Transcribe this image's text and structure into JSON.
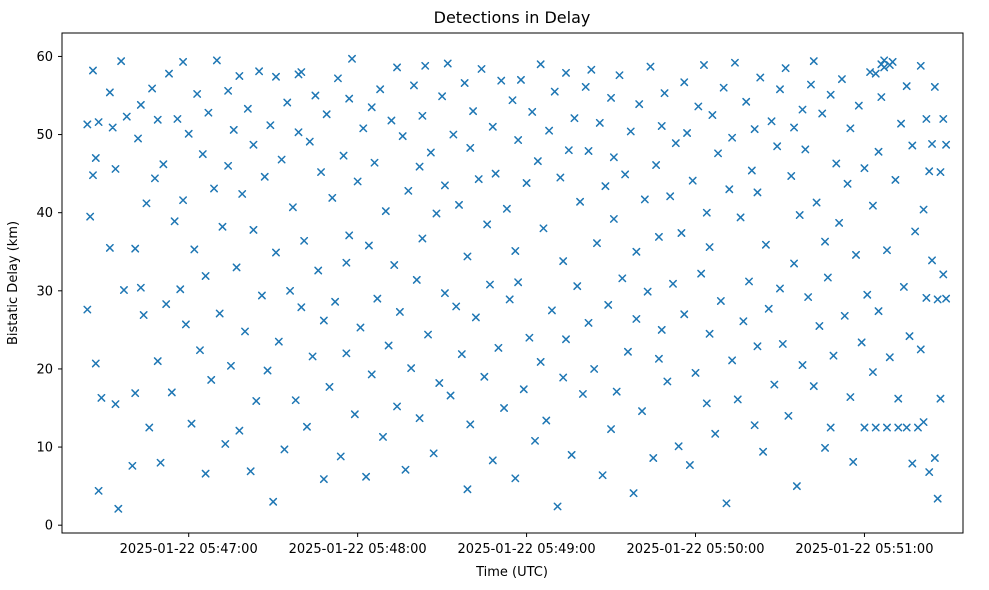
{
  "figure": {
    "title": "Detections in Delay",
    "xlabel": "Time (UTC)",
    "ylabel": "Bistatic Delay (km)"
  },
  "chart_data": {
    "type": "scatter",
    "title": "Detections in Delay",
    "xlabel": "Time (UTC)",
    "ylabel": "Bistatic Delay (km)",
    "marker": "x",
    "marker_color": "#1f77b4",
    "marker_size": 6,
    "grid": false,
    "legend": "none",
    "x_unit": "seconds after 2025-01-22 05:46:00 UTC",
    "xlim": [
      15,
      335
    ],
    "ylim": [
      -1,
      63
    ],
    "y_ticks": [
      0,
      10,
      20,
      30,
      40,
      50,
      60
    ],
    "x_ticks": [
      {
        "value": 60,
        "label": "2025-01-22 05:47:00"
      },
      {
        "value": 120,
        "label": "2025-01-22 05:48:00"
      },
      {
        "value": 180,
        "label": "2025-01-22 05:49:00"
      },
      {
        "value": 240,
        "label": "2025-01-22 05:50:00"
      },
      {
        "value": 300,
        "label": "2025-01-22 05:51:00"
      }
    ],
    "points": [
      [
        24,
        51.3
      ],
      [
        24,
        27.6
      ],
      [
        25,
        39.5
      ],
      [
        26,
        58.2
      ],
      [
        26,
        44.8
      ],
      [
        27,
        20.7
      ],
      [
        27,
        47.0
      ],
      [
        28,
        4.4
      ],
      [
        28,
        51.6
      ],
      [
        29,
        16.3
      ],
      [
        32,
        55.4
      ],
      [
        32,
        35.5
      ],
      [
        33,
        50.9
      ],
      [
        34,
        15.5
      ],
      [
        34,
        45.6
      ],
      [
        35,
        2.1
      ],
      [
        36,
        59.4
      ],
      [
        37,
        30.1
      ],
      [
        38,
        52.3
      ],
      [
        40,
        7.6
      ],
      [
        41,
        35.4
      ],
      [
        41,
        16.9
      ],
      [
        42,
        49.5
      ],
      [
        43,
        30.4
      ],
      [
        43,
        53.8
      ],
      [
        44,
        26.9
      ],
      [
        45,
        41.2
      ],
      [
        46,
        12.5
      ],
      [
        47,
        55.9
      ],
      [
        48,
        44.4
      ],
      [
        49,
        21.0
      ],
      [
        49,
        51.9
      ],
      [
        50,
        8.0
      ],
      [
        51,
        46.2
      ],
      [
        52,
        28.3
      ],
      [
        53,
        57.8
      ],
      [
        54,
        17.0
      ],
      [
        55,
        38.9
      ],
      [
        56,
        52.0
      ],
      [
        57,
        30.2
      ],
      [
        58,
        59.3
      ],
      [
        58,
        41.6
      ],
      [
        59,
        25.7
      ],
      [
        60,
        50.1
      ],
      [
        61,
        13.0
      ],
      [
        62,
        35.3
      ],
      [
        63,
        55.2
      ],
      [
        64,
        22.4
      ],
      [
        65,
        47.5
      ],
      [
        66,
        6.6
      ],
      [
        66,
        31.9
      ],
      [
        67,
        52.8
      ],
      [
        68,
        18.6
      ],
      [
        69,
        43.1
      ],
      [
        70,
        59.5
      ],
      [
        71,
        27.1
      ],
      [
        72,
        38.2
      ],
      [
        73,
        10.4
      ],
      [
        74,
        55.6
      ],
      [
        74,
        46.0
      ],
      [
        75,
        20.4
      ],
      [
        76,
        50.6
      ],
      [
        77,
        33.0
      ],
      [
        78,
        57.5
      ],
      [
        78,
        12.1
      ],
      [
        79,
        42.4
      ],
      [
        80,
        24.8
      ],
      [
        81,
        53.3
      ],
      [
        82,
        6.9
      ],
      [
        83,
        37.8
      ],
      [
        83,
        48.7
      ],
      [
        84,
        15.9
      ],
      [
        85,
        58.1
      ],
      [
        86,
        29.4
      ],
      [
        87,
        44.6
      ],
      [
        88,
        19.8
      ],
      [
        89,
        51.2
      ],
      [
        90,
        3.0
      ],
      [
        91,
        34.9
      ],
      [
        91,
        57.4
      ],
      [
        92,
        23.5
      ],
      [
        93,
        46.8
      ],
      [
        94,
        9.7
      ],
      [
        95,
        54.1
      ],
      [
        96,
        30.0
      ],
      [
        97,
        40.7
      ],
      [
        98,
        16.0
      ],
      [
        99,
        50.3
      ],
      [
        99,
        57.7
      ],
      [
        100,
        27.9
      ],
      [
        100,
        58.0
      ],
      [
        101,
        36.4
      ],
      [
        102,
        12.6
      ],
      [
        103,
        49.1
      ],
      [
        104,
        21.6
      ],
      [
        105,
        55.0
      ],
      [
        106,
        32.6
      ],
      [
        107,
        45.2
      ],
      [
        108,
        5.9
      ],
      [
        108,
        26.2
      ],
      [
        109,
        52.6
      ],
      [
        110,
        17.7
      ],
      [
        111,
        41.9
      ],
      [
        112,
        28.6
      ],
      [
        113,
        57.2
      ],
      [
        114,
        8.8
      ],
      [
        115,
        47.3
      ],
      [
        116,
        33.6
      ],
      [
        116,
        22.0
      ],
      [
        117,
        54.6
      ],
      [
        117,
        37.1
      ],
      [
        118,
        59.7
      ],
      [
        119,
        14.2
      ],
      [
        120,
        44.0
      ],
      [
        121,
        25.3
      ],
      [
        122,
        50.8
      ],
      [
        123,
        6.2
      ],
      [
        124,
        35.8
      ],
      [
        125,
        53.5
      ],
      [
        125,
        19.3
      ],
      [
        126,
        46.4
      ],
      [
        127,
        29.0
      ],
      [
        128,
        55.8
      ],
      [
        129,
        11.3
      ],
      [
        130,
        40.2
      ],
      [
        131,
        23.0
      ],
      [
        132,
        51.8
      ],
      [
        133,
        33.3
      ],
      [
        134,
        58.6
      ],
      [
        134,
        15.2
      ],
      [
        135,
        27.3
      ],
      [
        136,
        49.8
      ],
      [
        137,
        7.1
      ],
      [
        138,
        42.8
      ],
      [
        139,
        20.1
      ],
      [
        140,
        56.3
      ],
      [
        141,
        31.4
      ],
      [
        142,
        45.9
      ],
      [
        142,
        13.7
      ],
      [
        143,
        52.4
      ],
      [
        143,
        36.7
      ],
      [
        144,
        58.8
      ],
      [
        145,
        24.4
      ],
      [
        146,
        47.7
      ],
      [
        147,
        9.2
      ],
      [
        148,
        39.9
      ],
      [
        149,
        18.2
      ],
      [
        150,
        54.9
      ],
      [
        151,
        29.7
      ],
      [
        151,
        43.5
      ],
      [
        152,
        59.1
      ],
      [
        153,
        16.6
      ],
      [
        154,
        50.0
      ],
      [
        155,
        28.0
      ],
      [
        156,
        41.0
      ],
      [
        157,
        21.9
      ],
      [
        158,
        56.6
      ],
      [
        159,
        4.6
      ],
      [
        159,
        34.4
      ],
      [
        160,
        48.3
      ],
      [
        160,
        12.9
      ],
      [
        161,
        53.0
      ],
      [
        162,
        26.6
      ],
      [
        163,
        44.3
      ],
      [
        164,
        58.4
      ],
      [
        165,
        19.0
      ],
      [
        166,
        38.5
      ],
      [
        167,
        30.8
      ],
      [
        168,
        51.0
      ],
      [
        168,
        8.3
      ],
      [
        169,
        45.0
      ],
      [
        170,
        22.7
      ],
      [
        171,
        56.9
      ],
      [
        172,
        15.0
      ],
      [
        173,
        40.5
      ],
      [
        174,
        28.9
      ],
      [
        175,
        54.4
      ],
      [
        176,
        35.1
      ],
      [
        176,
        6.0
      ],
      [
        177,
        49.3
      ],
      [
        177,
        31.1
      ],
      [
        178,
        57.0
      ],
      [
        179,
        17.4
      ],
      [
        180,
        43.8
      ],
      [
        181,
        24.0
      ],
      [
        182,
        52.9
      ],
      [
        183,
        10.8
      ],
      [
        184,
        46.6
      ],
      [
        185,
        20.9
      ],
      [
        185,
        59.0
      ],
      [
        186,
        38.0
      ],
      [
        187,
        13.4
      ],
      [
        188,
        50.5
      ],
      [
        189,
        27.5
      ],
      [
        190,
        55.5
      ],
      [
        191,
        2.4
      ],
      [
        192,
        44.5
      ],
      [
        193,
        18.9
      ],
      [
        193,
        33.8
      ],
      [
        194,
        57.9
      ],
      [
        194,
        23.8
      ],
      [
        195,
        48.0
      ],
      [
        196,
        9.0
      ],
      [
        197,
        52.1
      ],
      [
        198,
        30.6
      ],
      [
        199,
        41.4
      ],
      [
        200,
        16.8
      ],
      [
        201,
        56.1
      ],
      [
        202,
        25.9
      ],
      [
        202,
        47.9
      ],
      [
        203,
        58.3
      ],
      [
        204,
        20.0
      ],
      [
        205,
        36.1
      ],
      [
        206,
        51.5
      ],
      [
        207,
        6.4
      ],
      [
        208,
        43.4
      ],
      [
        209,
        28.2
      ],
      [
        210,
        54.7
      ],
      [
        210,
        12.3
      ],
      [
        211,
        39.2
      ],
      [
        211,
        47.1
      ],
      [
        212,
        17.1
      ],
      [
        213,
        57.6
      ],
      [
        214,
        31.6
      ],
      [
        215,
        44.9
      ],
      [
        216,
        22.2
      ],
      [
        217,
        50.4
      ],
      [
        218,
        4.1
      ],
      [
        219,
        35.0
      ],
      [
        219,
        26.4
      ],
      [
        220,
        53.9
      ],
      [
        221,
        14.6
      ],
      [
        222,
        41.7
      ],
      [
        223,
        29.9
      ],
      [
        224,
        58.7
      ],
      [
        225,
        8.6
      ],
      [
        226,
        46.1
      ],
      [
        227,
        21.3
      ],
      [
        227,
        36.9
      ],
      [
        228,
        51.1
      ],
      [
        228,
        25.0
      ],
      [
        229,
        55.3
      ],
      [
        230,
        18.4
      ],
      [
        231,
        42.1
      ],
      [
        232,
        30.9
      ],
      [
        233,
        48.9
      ],
      [
        234,
        10.1
      ],
      [
        235,
        37.4
      ],
      [
        236,
        56.7
      ],
      [
        236,
        27.0
      ],
      [
        237,
        50.2
      ],
      [
        238,
        7.7
      ],
      [
        239,
        44.1
      ],
      [
        240,
        19.5
      ],
      [
        241,
        53.6
      ],
      [
        242,
        32.2
      ],
      [
        243,
        58.9
      ],
      [
        244,
        15.6
      ],
      [
        244,
        40.0
      ],
      [
        245,
        24.5
      ],
      [
        245,
        35.6
      ],
      [
        246,
        52.5
      ],
      [
        247,
        11.7
      ],
      [
        248,
        47.6
      ],
      [
        249,
        28.7
      ],
      [
        250,
        56.0
      ],
      [
        251,
        2.8
      ],
      [
        252,
        43.0
      ],
      [
        253,
        21.1
      ],
      [
        253,
        49.6
      ],
      [
        254,
        59.2
      ],
      [
        255,
        16.1
      ],
      [
        256,
        39.4
      ],
      [
        257,
        26.1
      ],
      [
        258,
        54.2
      ],
      [
        259,
        31.2
      ],
      [
        260,
        45.4
      ],
      [
        261,
        12.8
      ],
      [
        261,
        50.7
      ],
      [
        262,
        22.9
      ],
      [
        262,
        42.6
      ],
      [
        263,
        57.3
      ],
      [
        264,
        9.4
      ],
      [
        265,
        35.9
      ],
      [
        266,
        27.7
      ],
      [
        267,
        51.7
      ],
      [
        268,
        18.0
      ],
      [
        269,
        48.5
      ],
      [
        270,
        30.3
      ],
      [
        270,
        55.8
      ],
      [
        271,
        23.2
      ],
      [
        272,
        58.5
      ],
      [
        273,
        14.0
      ],
      [
        274,
        44.7
      ],
      [
        275,
        33.5
      ],
      [
        275,
        50.9
      ],
      [
        276,
        5.0
      ],
      [
        277,
        39.7
      ],
      [
        278,
        20.5
      ],
      [
        278,
        53.2
      ],
      [
        279,
        48.1
      ],
      [
        280,
        29.2
      ],
      [
        281,
        56.4
      ],
      [
        282,
        17.8
      ],
      [
        282,
        59.4
      ],
      [
        283,
        41.3
      ],
      [
        284,
        25.5
      ],
      [
        285,
        52.7
      ],
      [
        286,
        9.9
      ],
      [
        286,
        36.3
      ],
      [
        287,
        31.7
      ],
      [
        288,
        55.1
      ],
      [
        288,
        12.5
      ],
      [
        289,
        21.7
      ],
      [
        290,
        46.3
      ],
      [
        291,
        38.7
      ],
      [
        292,
        57.1
      ],
      [
        293,
        26.8
      ],
      [
        294,
        43.7
      ],
      [
        295,
        16.4
      ],
      [
        295,
        50.8
      ],
      [
        296,
        8.1
      ],
      [
        297,
        34.6
      ],
      [
        298,
        53.7
      ],
      [
        299,
        23.4
      ],
      [
        300,
        45.7
      ],
      [
        300,
        12.5
      ],
      [
        301,
        29.5
      ],
      [
        302,
        58.0
      ],
      [
        303,
        19.6
      ],
      [
        303,
        40.9
      ],
      [
        304,
        57.8
      ],
      [
        304,
        12.5
      ],
      [
        305,
        47.8
      ],
      [
        305,
        27.4
      ],
      [
        306,
        54.8
      ],
      [
        306,
        59.0
      ],
      [
        307,
        58.6
      ],
      [
        307,
        59.5
      ],
      [
        308,
        12.5
      ],
      [
        308,
        35.2
      ],
      [
        309,
        21.5
      ],
      [
        309,
        58.9
      ],
      [
        310,
        59.3
      ],
      [
        311,
        44.2
      ],
      [
        312,
        16.2
      ],
      [
        312,
        12.5
      ],
      [
        313,
        51.4
      ],
      [
        314,
        30.5
      ],
      [
        315,
        12.5
      ],
      [
        315,
        56.2
      ],
      [
        316,
        24.2
      ],
      [
        317,
        48.6
      ],
      [
        317,
        7.9
      ],
      [
        318,
        37.6
      ],
      [
        319,
        12.5
      ],
      [
        320,
        58.8
      ],
      [
        320,
        22.5
      ],
      [
        321,
        40.4
      ],
      [
        321,
        13.2
      ],
      [
        322,
        52.0
      ],
      [
        322,
        29.1
      ],
      [
        323,
        45.3
      ],
      [
        323,
        6.8
      ],
      [
        324,
        33.9
      ],
      [
        324,
        48.8
      ],
      [
        325,
        8.6
      ],
      [
        325,
        56.1
      ],
      [
        326,
        3.4
      ],
      [
        326,
        28.9
      ],
      [
        327,
        45.2
      ],
      [
        327,
        16.2
      ],
      [
        328,
        32.1
      ],
      [
        328,
        52.0
      ],
      [
        329,
        29.0
      ],
      [
        329,
        48.7
      ]
    ]
  }
}
